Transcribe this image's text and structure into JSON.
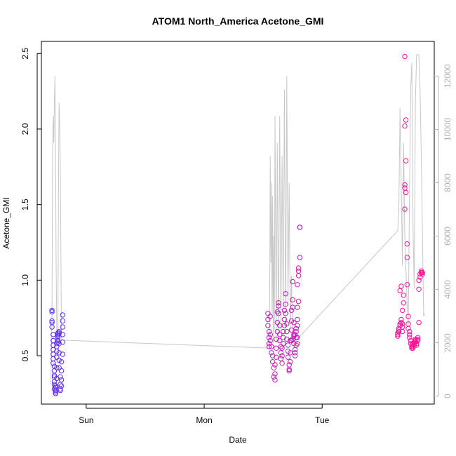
{
  "chart_data": {
    "type": "scatter",
    "title": "ATOM1 North_America Acetone_GMI",
    "xlabel": "Date",
    "ylabel": "Acetone_GMI",
    "x_ticks": [
      {
        "label": "Sun",
        "day": 1.0
      },
      {
        "label": "Mon",
        "day": 2.0
      },
      {
        "label": "Tue",
        "day": 3.0
      }
    ],
    "xlim": [
      0.62,
      3.95
    ],
    "ylim": [
      0.18,
      2.58
    ],
    "y_ticks": [
      0.5,
      1.0,
      1.5,
      2.0,
      2.5
    ],
    "right_axis": {
      "ticks": [
        0,
        2000,
        4000,
        6000,
        8000,
        10000,
        12000
      ],
      "ylim": [
        -300,
        13300
      ],
      "color": "#b3b3b3"
    },
    "grid": false,
    "altitude_line": [
      [
        0.7,
        450
      ],
      [
        0.71,
        3000
      ],
      [
        0.715,
        9000
      ],
      [
        0.72,
        10500
      ],
      [
        0.725,
        9500
      ],
      [
        0.73,
        11000
      ],
      [
        0.735,
        12000
      ],
      [
        0.74,
        9000
      ],
      [
        0.745,
        5000
      ],
      [
        0.75,
        2500
      ],
      [
        0.755,
        2000
      ],
      [
        0.76,
        2200
      ],
      [
        0.765,
        8000
      ],
      [
        0.77,
        11000
      ],
      [
        0.775,
        10000
      ],
      [
        0.78,
        9000
      ],
      [
        0.79,
        2100
      ],
      [
        2.55,
        1800
      ],
      [
        2.555,
        3500
      ],
      [
        2.56,
        9000
      ],
      [
        2.565,
        5000
      ],
      [
        2.57,
        8000
      ],
      [
        2.575,
        3000
      ],
      [
        2.58,
        7500
      ],
      [
        2.585,
        2000
      ],
      [
        2.59,
        6000
      ],
      [
        2.595,
        2500
      ],
      [
        2.6,
        10500
      ],
      [
        2.61,
        2000
      ],
      [
        2.62,
        9500
      ],
      [
        2.63,
        2000
      ],
      [
        2.64,
        10500
      ],
      [
        2.65,
        2500
      ],
      [
        2.66,
        9000
      ],
      [
        2.67,
        3000
      ],
      [
        2.68,
        11500
      ],
      [
        2.69,
        2500
      ],
      [
        2.7,
        12000
      ],
      [
        2.71,
        3500
      ],
      [
        2.72,
        8000
      ],
      [
        2.73,
        2500
      ],
      [
        2.74,
        4500
      ],
      [
        2.75,
        2200
      ],
      [
        2.76,
        2000
      ],
      [
        3.64,
        6200
      ],
      [
        3.65,
        7000
      ],
      [
        3.66,
        10800
      ],
      [
        3.67,
        8000
      ],
      [
        3.68,
        4900
      ],
      [
        3.69,
        9500
      ],
      [
        3.7,
        6000
      ],
      [
        3.72,
        3500
      ],
      [
        3.73,
        2600
      ],
      [
        3.74,
        7500
      ],
      [
        3.75,
        11500
      ],
      [
        3.76,
        12500
      ],
      [
        3.77,
        6500
      ],
      [
        3.78,
        4000
      ],
      [
        3.79,
        11000
      ],
      [
        3.8,
        12800
      ],
      [
        3.82,
        12800
      ],
      [
        3.83,
        11500
      ],
      [
        3.84,
        9000
      ],
      [
        3.85,
        6000
      ],
      [
        3.86,
        3000
      ],
      [
        3.87,
        3100
      ]
    ],
    "series": [
      {
        "name": "",
        "points": [
          [
            0.71,
            0.8
          ],
          [
            0.71,
            0.79
          ],
          [
            0.71,
            0.73
          ],
          [
            0.71,
            0.72
          ],
          [
            0.71,
            0.69
          ],
          [
            0.72,
            0.64
          ],
          [
            0.72,
            0.6
          ],
          [
            0.72,
            0.57
          ],
          [
            0.72,
            0.54
          ],
          [
            0.72,
            0.51
          ],
          [
            0.72,
            0.48
          ],
          [
            0.72,
            0.45
          ],
          [
            0.73,
            0.43
          ],
          [
            0.73,
            0.4
          ],
          [
            0.73,
            0.37
          ],
          [
            0.73,
            0.36
          ],
          [
            0.73,
            0.33
          ],
          [
            0.73,
            0.31
          ],
          [
            0.73,
            0.28
          ],
          [
            0.74,
            0.26
          ],
          [
            0.74,
            0.25
          ],
          [
            0.74,
            0.25
          ],
          [
            0.74,
            0.27
          ],
          [
            0.74,
            0.29
          ],
          [
            0.74,
            0.3
          ],
          [
            0.75,
            0.35
          ],
          [
            0.75,
            0.42
          ],
          [
            0.75,
            0.49
          ],
          [
            0.75,
            0.53
          ],
          [
            0.75,
            0.56
          ],
          [
            0.75,
            0.58
          ],
          [
            0.76,
            0.59
          ],
          [
            0.76,
            0.6
          ],
          [
            0.76,
            0.62
          ],
          [
            0.76,
            0.63
          ],
          [
            0.76,
            0.64
          ],
          [
            0.76,
            0.65
          ],
          [
            0.77,
            0.66
          ],
          [
            0.77,
            0.65
          ],
          [
            0.77,
            0.58
          ],
          [
            0.77,
            0.52
          ],
          [
            0.77,
            0.47
          ],
          [
            0.77,
            0.42
          ],
          [
            0.78,
            0.36
          ],
          [
            0.78,
            0.31
          ],
          [
            0.78,
            0.28
          ],
          [
            0.78,
            0.27
          ],
          [
            0.79,
            0.3
          ],
          [
            0.79,
            0.34
          ],
          [
            0.79,
            0.4
          ],
          [
            0.79,
            0.46
          ],
          [
            0.8,
            0.51
          ],
          [
            0.8,
            0.59
          ],
          [
            0.8,
            0.64
          ],
          [
            0.8,
            0.69
          ],
          [
            0.8,
            0.73
          ],
          [
            0.8,
            0.77
          ]
        ]
      },
      {
        "name": "",
        "points": [
          [
            2.54,
            0.78
          ],
          [
            2.54,
            0.74
          ],
          [
            2.54,
            0.7
          ],
          [
            2.55,
            0.66
          ],
          [
            2.55,
            0.62
          ],
          [
            2.55,
            0.58
          ],
          [
            2.55,
            0.56
          ],
          [
            2.56,
            0.76
          ],
          [
            2.56,
            0.64
          ],
          [
            2.56,
            0.6
          ],
          [
            2.57,
            0.56
          ],
          [
            2.57,
            0.52
          ],
          [
            2.58,
            0.5
          ],
          [
            2.58,
            0.46
          ],
          [
            2.59,
            0.42
          ],
          [
            2.59,
            0.36
          ],
          [
            2.6,
            0.34
          ],
          [
            2.6,
            0.38
          ],
          [
            2.6,
            0.44
          ],
          [
            2.61,
            0.49
          ],
          [
            2.61,
            0.55
          ],
          [
            2.61,
            0.61
          ],
          [
            2.62,
            0.66
          ],
          [
            2.62,
            0.72
          ],
          [
            2.62,
            0.79
          ],
          [
            2.63,
            0.83
          ],
          [
            2.63,
            0.85
          ],
          [
            2.63,
            0.78
          ],
          [
            2.64,
            0.7
          ],
          [
            2.64,
            0.64
          ],
          [
            2.64,
            0.6
          ],
          [
            2.65,
            0.56
          ],
          [
            2.65,
            0.52
          ],
          [
            2.65,
            0.48
          ],
          [
            2.66,
            0.45
          ],
          [
            2.66,
            0.5
          ],
          [
            2.66,
            0.55
          ],
          [
            2.67,
            0.58
          ],
          [
            2.67,
            0.62
          ],
          [
            2.67,
            0.66
          ],
          [
            2.68,
            0.7
          ],
          [
            2.68,
            0.74
          ],
          [
            2.68,
            0.8
          ],
          [
            2.69,
            0.91
          ],
          [
            2.69,
            0.84
          ],
          [
            2.69,
            0.78
          ],
          [
            2.7,
            0.71
          ],
          [
            2.7,
            0.66
          ],
          [
            2.7,
            0.61
          ],
          [
            2.71,
            0.57
          ],
          [
            2.71,
            0.53
          ],
          [
            2.71,
            0.49
          ],
          [
            2.72,
            0.44
          ],
          [
            2.72,
            0.4
          ],
          [
            2.72,
            0.41
          ],
          [
            2.73,
            0.46
          ],
          [
            2.73,
            0.52
          ],
          [
            2.73,
            0.6
          ],
          [
            2.74,
            0.67
          ],
          [
            2.74,
            0.73
          ],
          [
            2.74,
            0.8
          ],
          [
            2.75,
            0.87
          ],
          [
            2.75,
            0.99
          ],
          [
            2.75,
            0.82
          ],
          [
            2.76,
            0.72
          ],
          [
            2.76,
            0.64
          ],
          [
            2.76,
            0.58
          ],
          [
            2.77,
            0.54
          ],
          [
            2.77,
            0.5
          ],
          [
            2.77,
            0.52
          ],
          [
            2.78,
            0.57
          ],
          [
            2.78,
            0.62
          ],
          [
            2.78,
            0.68
          ],
          [
            2.79,
            0.74
          ],
          [
            2.79,
            0.82
          ],
          [
            2.79,
            0.97
          ],
          [
            2.8,
            1.06
          ],
          [
            2.8,
            1.03
          ],
          [
            2.8,
            1.08
          ],
          [
            2.81,
            1.15
          ],
          [
            2.81,
            1.35
          ],
          [
            2.81,
            1.35
          ],
          [
            2.8,
            0.86
          ],
          [
            2.79,
            0.7
          ],
          [
            2.78,
            0.66
          ],
          [
            2.77,
            0.64
          ],
          [
            2.76,
            0.63
          ],
          [
            2.75,
            0.61
          ],
          [
            2.74,
            0.6
          ],
          [
            2.79,
            0.58
          ],
          [
            2.79,
            0.62
          ]
        ]
      },
      {
        "name": "",
        "points": [
          [
            3.64,
            0.63
          ],
          [
            3.64,
            0.64
          ],
          [
            3.64,
            0.65
          ],
          [
            3.65,
            0.67
          ],
          [
            3.65,
            0.66
          ],
          [
            3.65,
            0.68
          ],
          [
            3.66,
            0.7
          ],
          [
            3.66,
            0.71
          ],
          [
            3.67,
            0.72
          ],
          [
            3.67,
            0.74
          ],
          [
            3.68,
            0.71
          ],
          [
            3.68,
            0.69
          ],
          [
            3.68,
            0.66
          ],
          [
            3.66,
            0.93
          ],
          [
            3.67,
            0.96
          ],
          [
            3.68,
            0.8
          ],
          [
            3.69,
            0.85
          ],
          [
            3.69,
            0.9
          ],
          [
            3.7,
            1.47
          ],
          [
            3.7,
            1.61
          ],
          [
            3.7,
            1.63
          ],
          [
            3.71,
            1.58
          ],
          [
            3.71,
            1.79
          ],
          [
            3.71,
            2.06
          ],
          [
            3.7,
            2.02
          ],
          [
            3.7,
            2.48
          ],
          [
            3.72,
            1.24
          ],
          [
            3.72,
            1.15
          ],
          [
            3.72,
            0.97
          ],
          [
            3.73,
            0.76
          ],
          [
            3.73,
            0.71
          ],
          [
            3.73,
            0.68
          ],
          [
            3.74,
            0.66
          ],
          [
            3.74,
            0.64
          ],
          [
            3.74,
            0.62
          ],
          [
            3.75,
            0.6
          ],
          [
            3.75,
            0.58
          ],
          [
            3.76,
            0.57
          ],
          [
            3.76,
            0.56
          ],
          [
            3.76,
            0.55
          ],
          [
            3.77,
            0.55
          ],
          [
            3.77,
            0.56
          ],
          [
            3.77,
            0.58
          ],
          [
            3.78,
            0.57
          ],
          [
            3.78,
            0.59
          ],
          [
            3.78,
            0.58
          ],
          [
            3.79,
            0.6
          ],
          [
            3.79,
            0.61
          ],
          [
            3.79,
            0.59
          ],
          [
            3.8,
            0.57
          ],
          [
            3.8,
            0.58
          ],
          [
            3.81,
            0.6
          ],
          [
            3.81,
            0.61
          ],
          [
            3.81,
            0.62
          ],
          [
            3.82,
            0.72
          ],
          [
            3.82,
            0.94
          ],
          [
            3.82,
            1.0
          ],
          [
            3.83,
            1.02
          ],
          [
            3.83,
            1.04
          ],
          [
            3.84,
            1.05
          ],
          [
            3.84,
            1.06
          ],
          [
            3.84,
            1.06
          ],
          [
            3.85,
            1.05
          ],
          [
            3.85,
            1.04
          ]
        ]
      }
    ],
    "colors": {
      "marker_gradient_start": "#5b2cf0",
      "marker_gradient_end": "#ff1493",
      "altitude_line": "#c8c8c8",
      "axis": "#000000"
    }
  }
}
